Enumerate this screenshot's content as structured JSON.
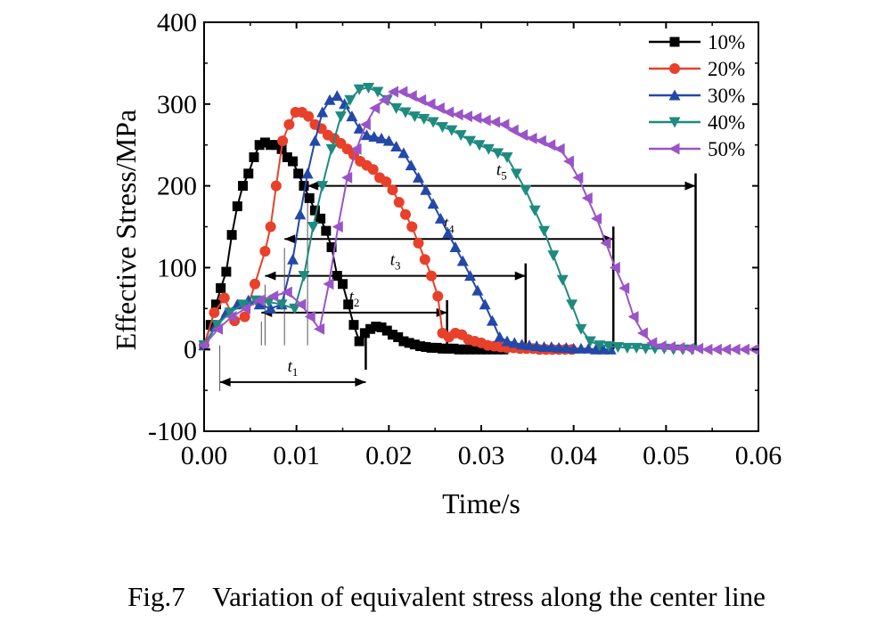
{
  "caption": "Fig.7    Variation of equivalent stress along the center line",
  "chart_data": {
    "type": "line",
    "title": "",
    "xlabel": "Time/s",
    "ylabel": "Effective Stress/MPa",
    "xlim": [
      0,
      0.06
    ],
    "ylim": [
      -100,
      400
    ],
    "xticks": [
      0.0,
      0.01,
      0.02,
      0.03,
      0.04,
      0.05,
      0.06
    ],
    "xtick_labels": [
      "0.00",
      "0.01",
      "0.02",
      "0.03",
      "0.04",
      "0.05",
      "0.06"
    ],
    "yticks": [
      -100,
      0,
      100,
      200,
      300,
      400
    ],
    "ytick_labels": [
      "-100",
      "0",
      "100",
      "200",
      "300",
      "400"
    ],
    "legend_position": "top-right",
    "series": [
      {
        "name": "10%",
        "color": "#000000",
        "marker": "square",
        "x": [
          0,
          0.0007,
          0.0013,
          0.0018,
          0.0024,
          0.003,
          0.0036,
          0.0042,
          0.0048,
          0.0054,
          0.006,
          0.0066,
          0.0072,
          0.0078,
          0.0084,
          0.009,
          0.0096,
          0.0102,
          0.0108,
          0.0114,
          0.012,
          0.0126,
          0.0132,
          0.0138,
          0.0144,
          0.015,
          0.0156,
          0.0162,
          0.0168,
          0.0174,
          0.018,
          0.0186,
          0.0192,
          0.0198,
          0.0204,
          0.021,
          0.0216,
          0.0222,
          0.0228,
          0.0234,
          0.024,
          0.0246,
          0.0252,
          0.0258,
          0.0264,
          0.027,
          0.0276,
          0.0282,
          0.0288,
          0.0294,
          0.03,
          0.0306,
          0.0312,
          0.0318,
          0.0324
        ],
        "y": [
          5,
          30,
          55,
          75,
          95,
          140,
          175,
          200,
          215,
          235,
          250,
          253,
          250,
          250,
          245,
          235,
          230,
          215,
          200,
          185,
          170,
          160,
          145,
          125,
          90,
          80,
          55,
          30,
          10,
          20,
          25,
          28,
          27,
          23,
          18,
          15,
          10,
          8,
          6,
          4,
          3,
          2,
          2,
          1,
          1,
          1,
          0,
          0,
          0,
          0,
          0,
          0,
          0,
          0,
          0
        ]
      },
      {
        "name": "20%",
        "color": "#e8402a",
        "marker": "circle",
        "x": [
          0,
          0.0011,
          0.0022,
          0.0033,
          0.0044,
          0.0055,
          0.0066,
          0.0072,
          0.0078,
          0.0085,
          0.0092,
          0.0099,
          0.0106,
          0.0113,
          0.012,
          0.0127,
          0.0134,
          0.0141,
          0.0148,
          0.0155,
          0.0162,
          0.0169,
          0.0176,
          0.0183,
          0.019,
          0.0197,
          0.0204,
          0.0211,
          0.0218,
          0.0225,
          0.0232,
          0.0239,
          0.0246,
          0.0253,
          0.0258,
          0.0265,
          0.0272,
          0.0279,
          0.0286,
          0.0293,
          0.03,
          0.0307,
          0.0314,
          0.0321,
          0.0328,
          0.0335,
          0.0342,
          0.0349,
          0.0356,
          0.0363,
          0.037,
          0.0377,
          0.0384,
          0.0391,
          0.0398
        ],
        "y": [
          5,
          45,
          63,
          35,
          40,
          80,
          120,
          150,
          200,
          255,
          275,
          290,
          290,
          285,
          275,
          270,
          262,
          258,
          252,
          245,
          238,
          230,
          225,
          220,
          210,
          205,
          195,
          180,
          165,
          150,
          130,
          110,
          90,
          65,
          20,
          15,
          20,
          18,
          12,
          10,
          8,
          5,
          4,
          3,
          2,
          2,
          1,
          1,
          1,
          0,
          0,
          0,
          0,
          0,
          0
        ]
      },
      {
        "name": "30%",
        "color": "#2448a8",
        "marker": "triangle-up",
        "x": [
          0,
          0.0012,
          0.0024,
          0.0036,
          0.0048,
          0.006,
          0.0072,
          0.0084,
          0.0096,
          0.0104,
          0.0112,
          0.012,
          0.0128,
          0.0136,
          0.0144,
          0.0152,
          0.016,
          0.0168,
          0.0176,
          0.0184,
          0.0192,
          0.02,
          0.0208,
          0.0216,
          0.0224,
          0.0232,
          0.024,
          0.0248,
          0.0256,
          0.0264,
          0.0272,
          0.028,
          0.0288,
          0.0296,
          0.0304,
          0.0312,
          0.032,
          0.0328,
          0.0336,
          0.0344,
          0.0352,
          0.036,
          0.0368,
          0.0376,
          0.0384,
          0.0392,
          0.04,
          0.0408,
          0.0416,
          0.0424,
          0.0432,
          0.044
        ],
        "y": [
          5,
          28,
          45,
          55,
          60,
          55,
          50,
          55,
          110,
          165,
          215,
          255,
          290,
          305,
          310,
          300,
          285,
          270,
          262,
          260,
          258,
          255,
          248,
          240,
          225,
          210,
          195,
          178,
          160,
          142,
          125,
          108,
          90,
          72,
          55,
          35,
          15,
          10,
          8,
          6,
          5,
          4,
          3,
          3,
          2,
          2,
          1,
          1,
          1,
          0,
          0,
          0
        ]
      },
      {
        "name": "40%",
        "color": "#1f8a80",
        "marker": "triangle-down",
        "x": [
          0,
          0.0014,
          0.0028,
          0.0042,
          0.0056,
          0.007,
          0.0084,
          0.0098,
          0.0108,
          0.0118,
          0.0128,
          0.0138,
          0.0148,
          0.0158,
          0.0168,
          0.0178,
          0.0188,
          0.0198,
          0.0208,
          0.0218,
          0.0228,
          0.0238,
          0.0248,
          0.0258,
          0.0268,
          0.0278,
          0.0288,
          0.0298,
          0.0308,
          0.0318,
          0.0328,
          0.0338,
          0.0348,
          0.0358,
          0.0368,
          0.0378,
          0.0388,
          0.0398,
          0.0408,
          0.0418,
          0.0428,
          0.0438,
          0.0448,
          0.0458,
          0.0468,
          0.0478,
          0.0488,
          0.0498,
          0.0508,
          0.0518,
          0.0528
        ],
        "y": [
          5,
          30,
          45,
          55,
          60,
          58,
          55,
          50,
          90,
          150,
          200,
          245,
          285,
          305,
          318,
          320,
          315,
          305,
          295,
          290,
          285,
          282,
          278,
          272,
          268,
          262,
          255,
          250,
          245,
          240,
          235,
          215,
          195,
          170,
          145,
          115,
          85,
          55,
          25,
          10,
          5,
          4,
          3,
          2,
          2,
          1,
          1,
          1,
          0,
          0,
          0
        ]
      },
      {
        "name": "50%",
        "color": "#9a54c8",
        "marker": "triangle-left",
        "x": [
          0,
          0.0015,
          0.003,
          0.0045,
          0.006,
          0.0075,
          0.009,
          0.0105,
          0.0115,
          0.0125,
          0.0135,
          0.0145,
          0.0155,
          0.0165,
          0.0175,
          0.0185,
          0.0195,
          0.0205,
          0.0215,
          0.0225,
          0.0235,
          0.0245,
          0.0255,
          0.0265,
          0.0275,
          0.0285,
          0.0295,
          0.0305,
          0.0315,
          0.0325,
          0.0335,
          0.0345,
          0.0355,
          0.0365,
          0.0375,
          0.0385,
          0.0395,
          0.0405,
          0.0415,
          0.0425,
          0.0435,
          0.0445,
          0.0455,
          0.0465,
          0.0475,
          0.0485,
          0.0495,
          0.0505,
          0.0515,
          0.0525,
          0.0535,
          0.0545,
          0.0555,
          0.0565,
          0.0575,
          0.0585,
          0.0595
        ],
        "y": [
          5,
          25,
          40,
          50,
          60,
          65,
          70,
          55,
          40,
          25,
          80,
          150,
          210,
          245,
          275,
          295,
          305,
          315,
          315,
          310,
          305,
          300,
          295,
          290,
          287,
          285,
          283,
          280,
          278,
          275,
          268,
          262,
          258,
          255,
          250,
          245,
          230,
          210,
          185,
          160,
          130,
          100,
          75,
          40,
          20,
          8,
          4,
          3,
          2,
          1,
          1,
          0,
          0,
          0,
          0,
          0,
          0
        ]
      }
    ],
    "annotations": [
      {
        "name": "t-1",
        "label": "t",
        "sub": "1",
        "x_start": 0.0017,
        "x_end": 0.0175,
        "y": -40
      },
      {
        "name": "t-2",
        "label": "t",
        "sub": "2",
        "x_start": 0.0062,
        "x_end": 0.0263,
        "y": 45
      },
      {
        "name": "t-3",
        "label": "t",
        "sub": "3",
        "x_start": 0.0066,
        "x_end": 0.0348,
        "y": 90
      },
      {
        "name": "t-4",
        "label": "t",
        "sub": "4",
        "x_start": 0.0087,
        "x_end": 0.0443,
        "y": 135
      },
      {
        "name": "t-5",
        "label": "t",
        "sub": "5",
        "x_start": 0.0112,
        "x_end": 0.0532,
        "y": 200
      }
    ]
  }
}
